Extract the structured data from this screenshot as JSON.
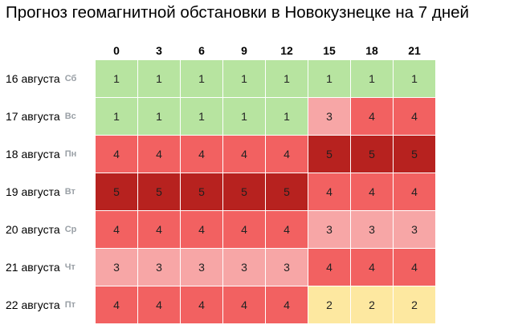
{
  "title": "Прогноз геомагнитной обстановки в Новокузнецке на 7 дней",
  "colors": {
    "1": "#b7e4a0",
    "2": "#fde8a0",
    "3": "#f7a6a6",
    "4": "#f26161",
    "5": "#b7221f"
  },
  "chart_data": {
    "type": "heatmap",
    "title": "Прогноз геомагнитной обстановки в Новокузнецке на 7 дней",
    "columns": [
      "0",
      "3",
      "6",
      "9",
      "12",
      "15",
      "18",
      "21"
    ],
    "rows": [
      {
        "date": "16 августа",
        "dow": "Сб",
        "values": [
          1,
          1,
          1,
          1,
          1,
          1,
          1,
          1
        ]
      },
      {
        "date": "17 августа",
        "dow": "Вс",
        "values": [
          1,
          1,
          1,
          1,
          1,
          3,
          4,
          4
        ]
      },
      {
        "date": "18 августа",
        "dow": "Пн",
        "values": [
          4,
          4,
          4,
          4,
          4,
          5,
          5,
          5
        ]
      },
      {
        "date": "19 августа",
        "dow": "Вт",
        "values": [
          5,
          5,
          5,
          5,
          5,
          4,
          4,
          4
        ]
      },
      {
        "date": "20 августа",
        "dow": "Ср",
        "values": [
          4,
          4,
          4,
          4,
          4,
          3,
          3,
          3
        ]
      },
      {
        "date": "21 августа",
        "dow": "Чт",
        "values": [
          3,
          3,
          3,
          3,
          3,
          4,
          4,
          4
        ]
      },
      {
        "date": "22 августа",
        "dow": "Пт",
        "values": [
          4,
          4,
          4,
          4,
          4,
          2,
          2,
          2
        ]
      }
    ]
  }
}
